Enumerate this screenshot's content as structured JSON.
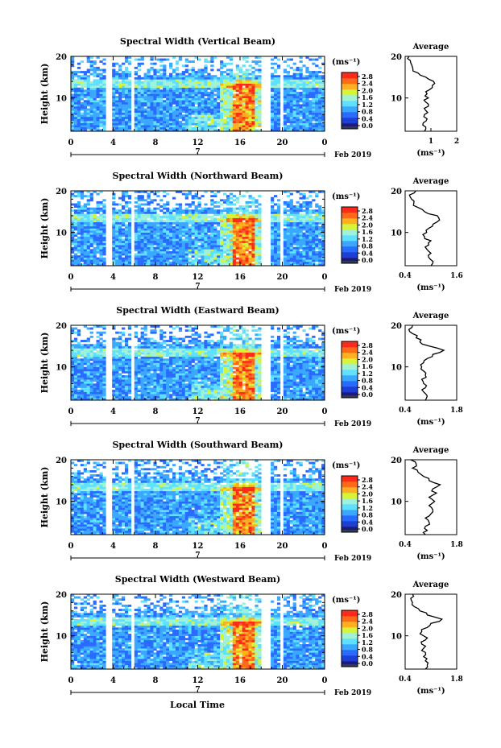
{
  "figure": {
    "xlabel": "Local Time",
    "date_label": "Feb 2019",
    "date_day": "7",
    "colorbar_unit": "(ms⁻¹)",
    "colorbar_ticks": [
      "2.8",
      "2.4",
      "2.0",
      "1.6",
      "1.2",
      "0.8",
      "0.4",
      "0.0"
    ],
    "average_title": "Average",
    "average_xlabel": "(ms⁻¹)",
    "colors": {
      "scale": [
        "#1f1a7a",
        "#1c3fd6",
        "#2a6bff",
        "#3aa8ff",
        "#5fe0ff",
        "#9ff2d8",
        "#d6f53a",
        "#ffb020",
        "#ff6a1a",
        "#ff2a1a"
      ],
      "low_band": "#303a55",
      "line": "#000000"
    }
  },
  "chart_data": [
    {
      "type": "heatmap",
      "title": "Spectral Width (Vertical Beam)",
      "ylabel": "Height (km)",
      "x_ticks": [
        "0",
        "4",
        "8",
        "12",
        "16",
        "20",
        "0"
      ],
      "y_ticks": [
        "20",
        "10"
      ],
      "xlim": [
        0,
        24
      ],
      "ylim": [
        2,
        20
      ],
      "colorbar_range": [
        0.0,
        3.0
      ],
      "profile": {
        "xlim": [
          0,
          2
        ],
        "x_ticks": [
          "1",
          "2"
        ],
        "height": [
          2,
          3,
          4,
          5,
          6,
          7,
          8,
          9,
          10,
          11,
          12,
          13,
          14,
          15,
          16,
          17,
          18,
          19,
          20
        ],
        "values": [
          0.75,
          0.8,
          0.7,
          0.85,
          0.75,
          0.8,
          0.9,
          0.8,
          0.9,
          0.85,
          0.95,
          1.05,
          1.1,
          0.8,
          0.5,
          0.3,
          0.25,
          0.2,
          0.15
        ]
      }
    },
    {
      "type": "heatmap",
      "title": "Spectral Width (Northward Beam)",
      "ylabel": "Height (km)",
      "x_ticks": [
        "0",
        "4",
        "8",
        "12",
        "16",
        "20",
        "0"
      ],
      "y_ticks": [
        "20",
        "10"
      ],
      "xlim": [
        0,
        24
      ],
      "ylim": [
        2,
        20
      ],
      "colorbar_range": [
        0.0,
        3.0
      ],
      "profile": {
        "xlim": [
          0.4,
          1.6
        ],
        "x_ticks": [
          "0.4",
          "1.6"
        ],
        "height": [
          2,
          3,
          4,
          5,
          6,
          7,
          8,
          9,
          10,
          11,
          12,
          13,
          14,
          15,
          16,
          17,
          18,
          19,
          20
        ],
        "values": [
          1.0,
          1.05,
          0.95,
          1.0,
          0.9,
          0.95,
          1.0,
          0.85,
          0.9,
          0.95,
          1.05,
          1.2,
          1.15,
          0.85,
          0.7,
          0.6,
          0.55,
          0.5,
          0.65
        ]
      }
    },
    {
      "type": "heatmap",
      "title": "Spectral Width (Eastward Beam)",
      "ylabel": "Height (km)",
      "x_ticks": [
        "0",
        "4",
        "8",
        "12",
        "16",
        "20",
        "0"
      ],
      "y_ticks": [
        "20",
        "10"
      ],
      "xlim": [
        0,
        24
      ],
      "ylim": [
        2,
        20
      ],
      "colorbar_range": [
        0.0,
        3.0
      ],
      "profile": {
        "xlim": [
          0.4,
          1.8
        ],
        "x_ticks": [
          "0.4",
          "1.8"
        ],
        "height": [
          2,
          3,
          4,
          5,
          6,
          7,
          8,
          9,
          10,
          11,
          12,
          13,
          14,
          15,
          16,
          17,
          18,
          19,
          20
        ],
        "values": [
          0.95,
          1.0,
          0.9,
          0.95,
          0.9,
          0.85,
          0.95,
          0.9,
          0.85,
          0.9,
          1.0,
          1.15,
          1.45,
          1.05,
          0.8,
          0.7,
          0.6,
          0.5,
          0.6
        ]
      }
    },
    {
      "type": "heatmap",
      "title": "Spectral Width (Southward Beam)",
      "ylabel": "Height (km)",
      "x_ticks": [
        "0",
        "4",
        "8",
        "12",
        "16",
        "20",
        "0"
      ],
      "y_ticks": [
        "20",
        "10"
      ],
      "xlim": [
        0,
        24
      ],
      "ylim": [
        2,
        20
      ],
      "colorbar_range": [
        0.0,
        3.0
      ],
      "profile": {
        "xlim": [
          0.4,
          1.8
        ],
        "x_ticks": [
          "0.4",
          "1.8"
        ],
        "height": [
          2,
          3,
          4,
          5,
          6,
          7,
          8,
          9,
          10,
          11,
          12,
          13,
          14,
          15,
          16,
          17,
          18,
          19,
          20
        ],
        "values": [
          0.95,
          1.0,
          0.95,
          1.05,
          0.95,
          1.1,
          1.15,
          1.05,
          1.2,
          1.05,
          1.25,
          1.15,
          1.35,
          1.05,
          0.9,
          0.75,
          0.6,
          0.7,
          0.55
        ]
      }
    },
    {
      "type": "heatmap",
      "title": "Spectral Width (Westward Beam)",
      "ylabel": "Height (km)",
      "x_ticks": [
        "0",
        "4",
        "8",
        "12",
        "16",
        "20",
        "0"
      ],
      "y_ticks": [
        "20",
        "10"
      ],
      "xlim": [
        0,
        24
      ],
      "ylim": [
        2,
        20
      ],
      "colorbar_range": [
        0.0,
        3.0
      ],
      "profile": {
        "xlim": [
          0.4,
          1.8
        ],
        "x_ticks": [
          "0.4",
          "1.8"
        ],
        "height": [
          2,
          3,
          4,
          5,
          6,
          7,
          8,
          9,
          10,
          11,
          12,
          13,
          14,
          15,
          16,
          17,
          18,
          19,
          20
        ],
        "values": [
          0.95,
          1.0,
          0.95,
          0.9,
          0.95,
          0.9,
          0.85,
          0.95,
          0.9,
          0.85,
          1.0,
          1.1,
          1.4,
          1.0,
          0.8,
          0.65,
          0.6,
          0.55,
          0.6
        ]
      }
    }
  ]
}
